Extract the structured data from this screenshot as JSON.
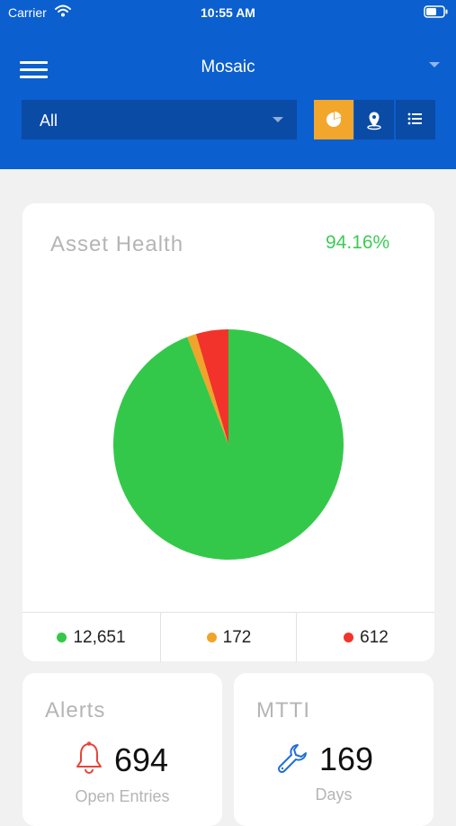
{
  "status_bar": {
    "carrier": "Carrier",
    "time": "10:55 AM"
  },
  "header": {
    "title": "Mosaic",
    "filter_value": "All",
    "view_modes": [
      {
        "name": "pie-chart-view",
        "icon": "pie-chart-icon",
        "active": true
      },
      {
        "name": "map-view",
        "icon": "map-pin-icon",
        "active": false
      },
      {
        "name": "list-view",
        "icon": "list-icon",
        "active": false
      }
    ]
  },
  "asset_health": {
    "title": "Asset Health",
    "percent": "94.16%",
    "legend": [
      {
        "label": "12,651",
        "color": "#34c84a"
      },
      {
        "label": "172",
        "color": "#f0a429"
      },
      {
        "label": "612",
        "color": "#f2332b"
      }
    ]
  },
  "chart_data": {
    "type": "pie",
    "title": "Asset Health",
    "categories": [
      "12,651",
      "172",
      "612"
    ],
    "values": [
      12651,
      172,
      612
    ],
    "colors": [
      "#34c84a",
      "#f0a429",
      "#f2332b"
    ]
  },
  "alerts": {
    "title": "Alerts",
    "value": "694",
    "caption": "Open Entries",
    "icon": "bell-icon",
    "icon_color": "#e8443a"
  },
  "mtti": {
    "title": "MTTI",
    "value": "169",
    "caption": "Days",
    "icon": "wrench-icon",
    "icon_color": "#1f6fd6"
  },
  "colors": {
    "header_bg": "#0b5fce",
    "select_bg": "#0a4ba6",
    "accent": "#f2a62b",
    "healthy": "#3dcb55"
  }
}
